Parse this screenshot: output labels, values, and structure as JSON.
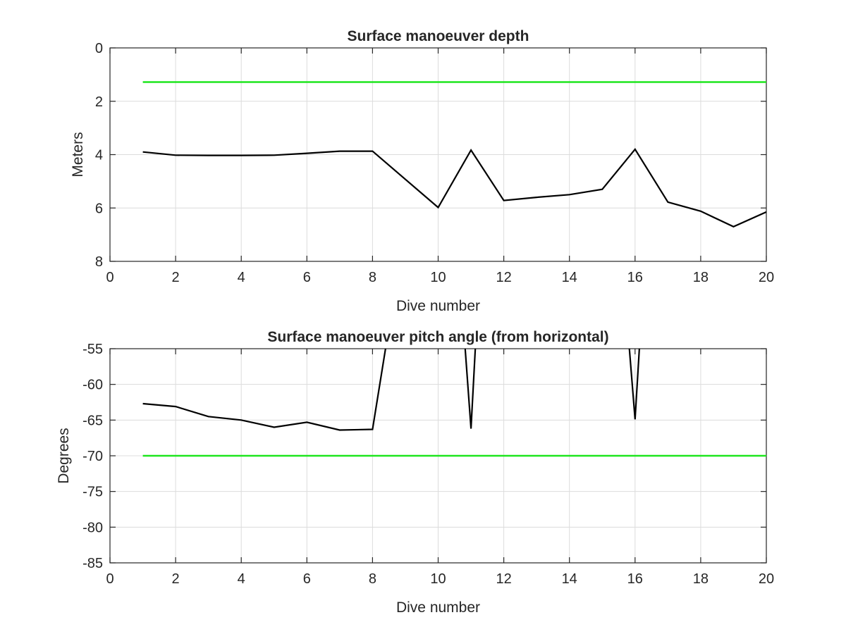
{
  "chart_data": [
    {
      "type": "line",
      "title": "Surface manoeuver depth",
      "xlabel": "Dive number",
      "ylabel": "Meters",
      "xlim": [
        0,
        20
      ],
      "ylim": [
        0,
        8
      ],
      "y_reversed": true,
      "grid": true,
      "x_ticks": [
        "0",
        "2",
        "4",
        "6",
        "8",
        "10",
        "12",
        "14",
        "16",
        "18",
        "20"
      ],
      "y_ticks": [
        "0",
        "2",
        "4",
        "6",
        "8"
      ],
      "colors": {
        "measured": "#000000",
        "threshold": "#1ee61e"
      },
      "series": [
        {
          "x": [
            1,
            2,
            3,
            4,
            5,
            6,
            7,
            8,
            10,
            11,
            12,
            13,
            14,
            15,
            16,
            17,
            18,
            19,
            20
          ],
          "values": [
            3.9,
            4.02,
            4.03,
            4.03,
            4.02,
            3.95,
            3.87,
            3.87,
            5.98,
            3.83,
            5.72,
            5.6,
            5.5,
            5.3,
            3.8,
            5.78,
            6.12,
            6.7,
            6.15
          ]
        },
        {
          "x": [
            1,
            20
          ],
          "values": [
            1.28,
            1.28
          ]
        }
      ]
    },
    {
      "type": "line",
      "title": "Surface manoeuver pitch angle (from horizontal)",
      "xlabel": "Dive number",
      "ylabel": "Degrees",
      "xlim": [
        0,
        20
      ],
      "ylim": [
        -85,
        -55
      ],
      "grid": true,
      "x_ticks": [
        "0",
        "2",
        "4",
        "6",
        "8",
        "10",
        "12",
        "14",
        "16",
        "18",
        "20"
      ],
      "y_ticks": [
        "-55",
        "-60",
        "-65",
        "-70",
        "-75",
        "-80",
        "-85"
      ],
      "colors": {
        "measured": "#000000",
        "threshold": "#1ee61e"
      },
      "series": [
        {
          "x": [
            1,
            2,
            3,
            4,
            5,
            6,
            7,
            8,
            8.45,
            10.8,
            11,
            11.15,
            15.8,
            16,
            16.15
          ],
          "values": [
            -62.7,
            -63.1,
            -64.5,
            -65.0,
            -66.0,
            -65.3,
            -66.4,
            -66.3,
            -53.5,
            -53.5,
            -66.2,
            -53.5,
            -53.5,
            -64.9,
            -53.5
          ]
        },
        {
          "x": [
            1,
            20
          ],
          "values": [
            -70,
            -70
          ]
        }
      ]
    }
  ]
}
